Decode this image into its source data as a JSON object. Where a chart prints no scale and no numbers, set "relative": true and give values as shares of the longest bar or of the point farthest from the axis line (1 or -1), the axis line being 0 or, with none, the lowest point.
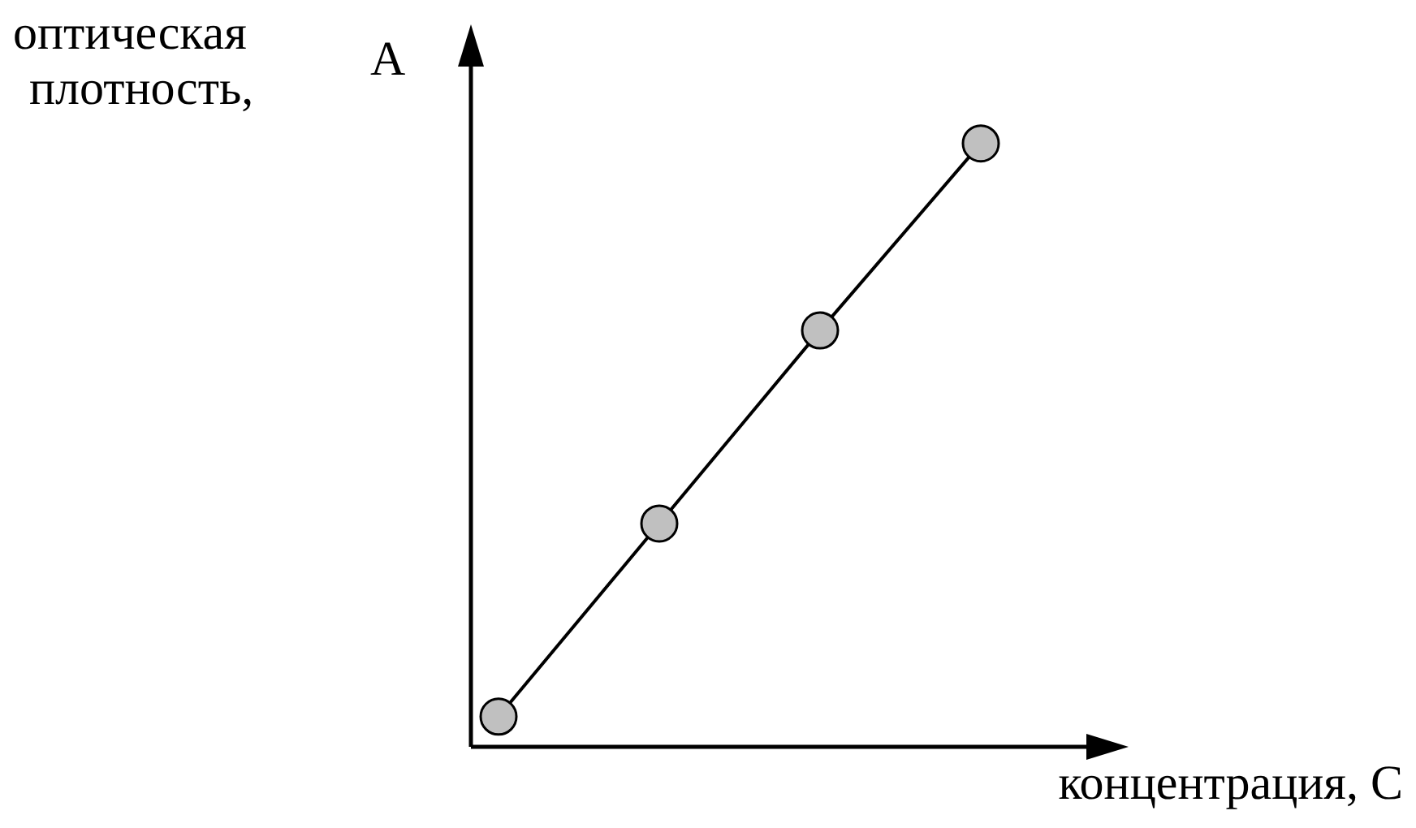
{
  "chart_data": {
    "type": "line",
    "xlabel": "концентрация, C",
    "ylabel": "оптическая плотность, A",
    "relative": true,
    "marker": "circle",
    "legend": false,
    "categories": [
      null,
      null,
      null,
      null
    ],
    "series": [
      {
        "values": [
          0.05,
          0.37,
          0.69,
          1
        ],
        "color": "#000000"
      }
    ]
  }
}
